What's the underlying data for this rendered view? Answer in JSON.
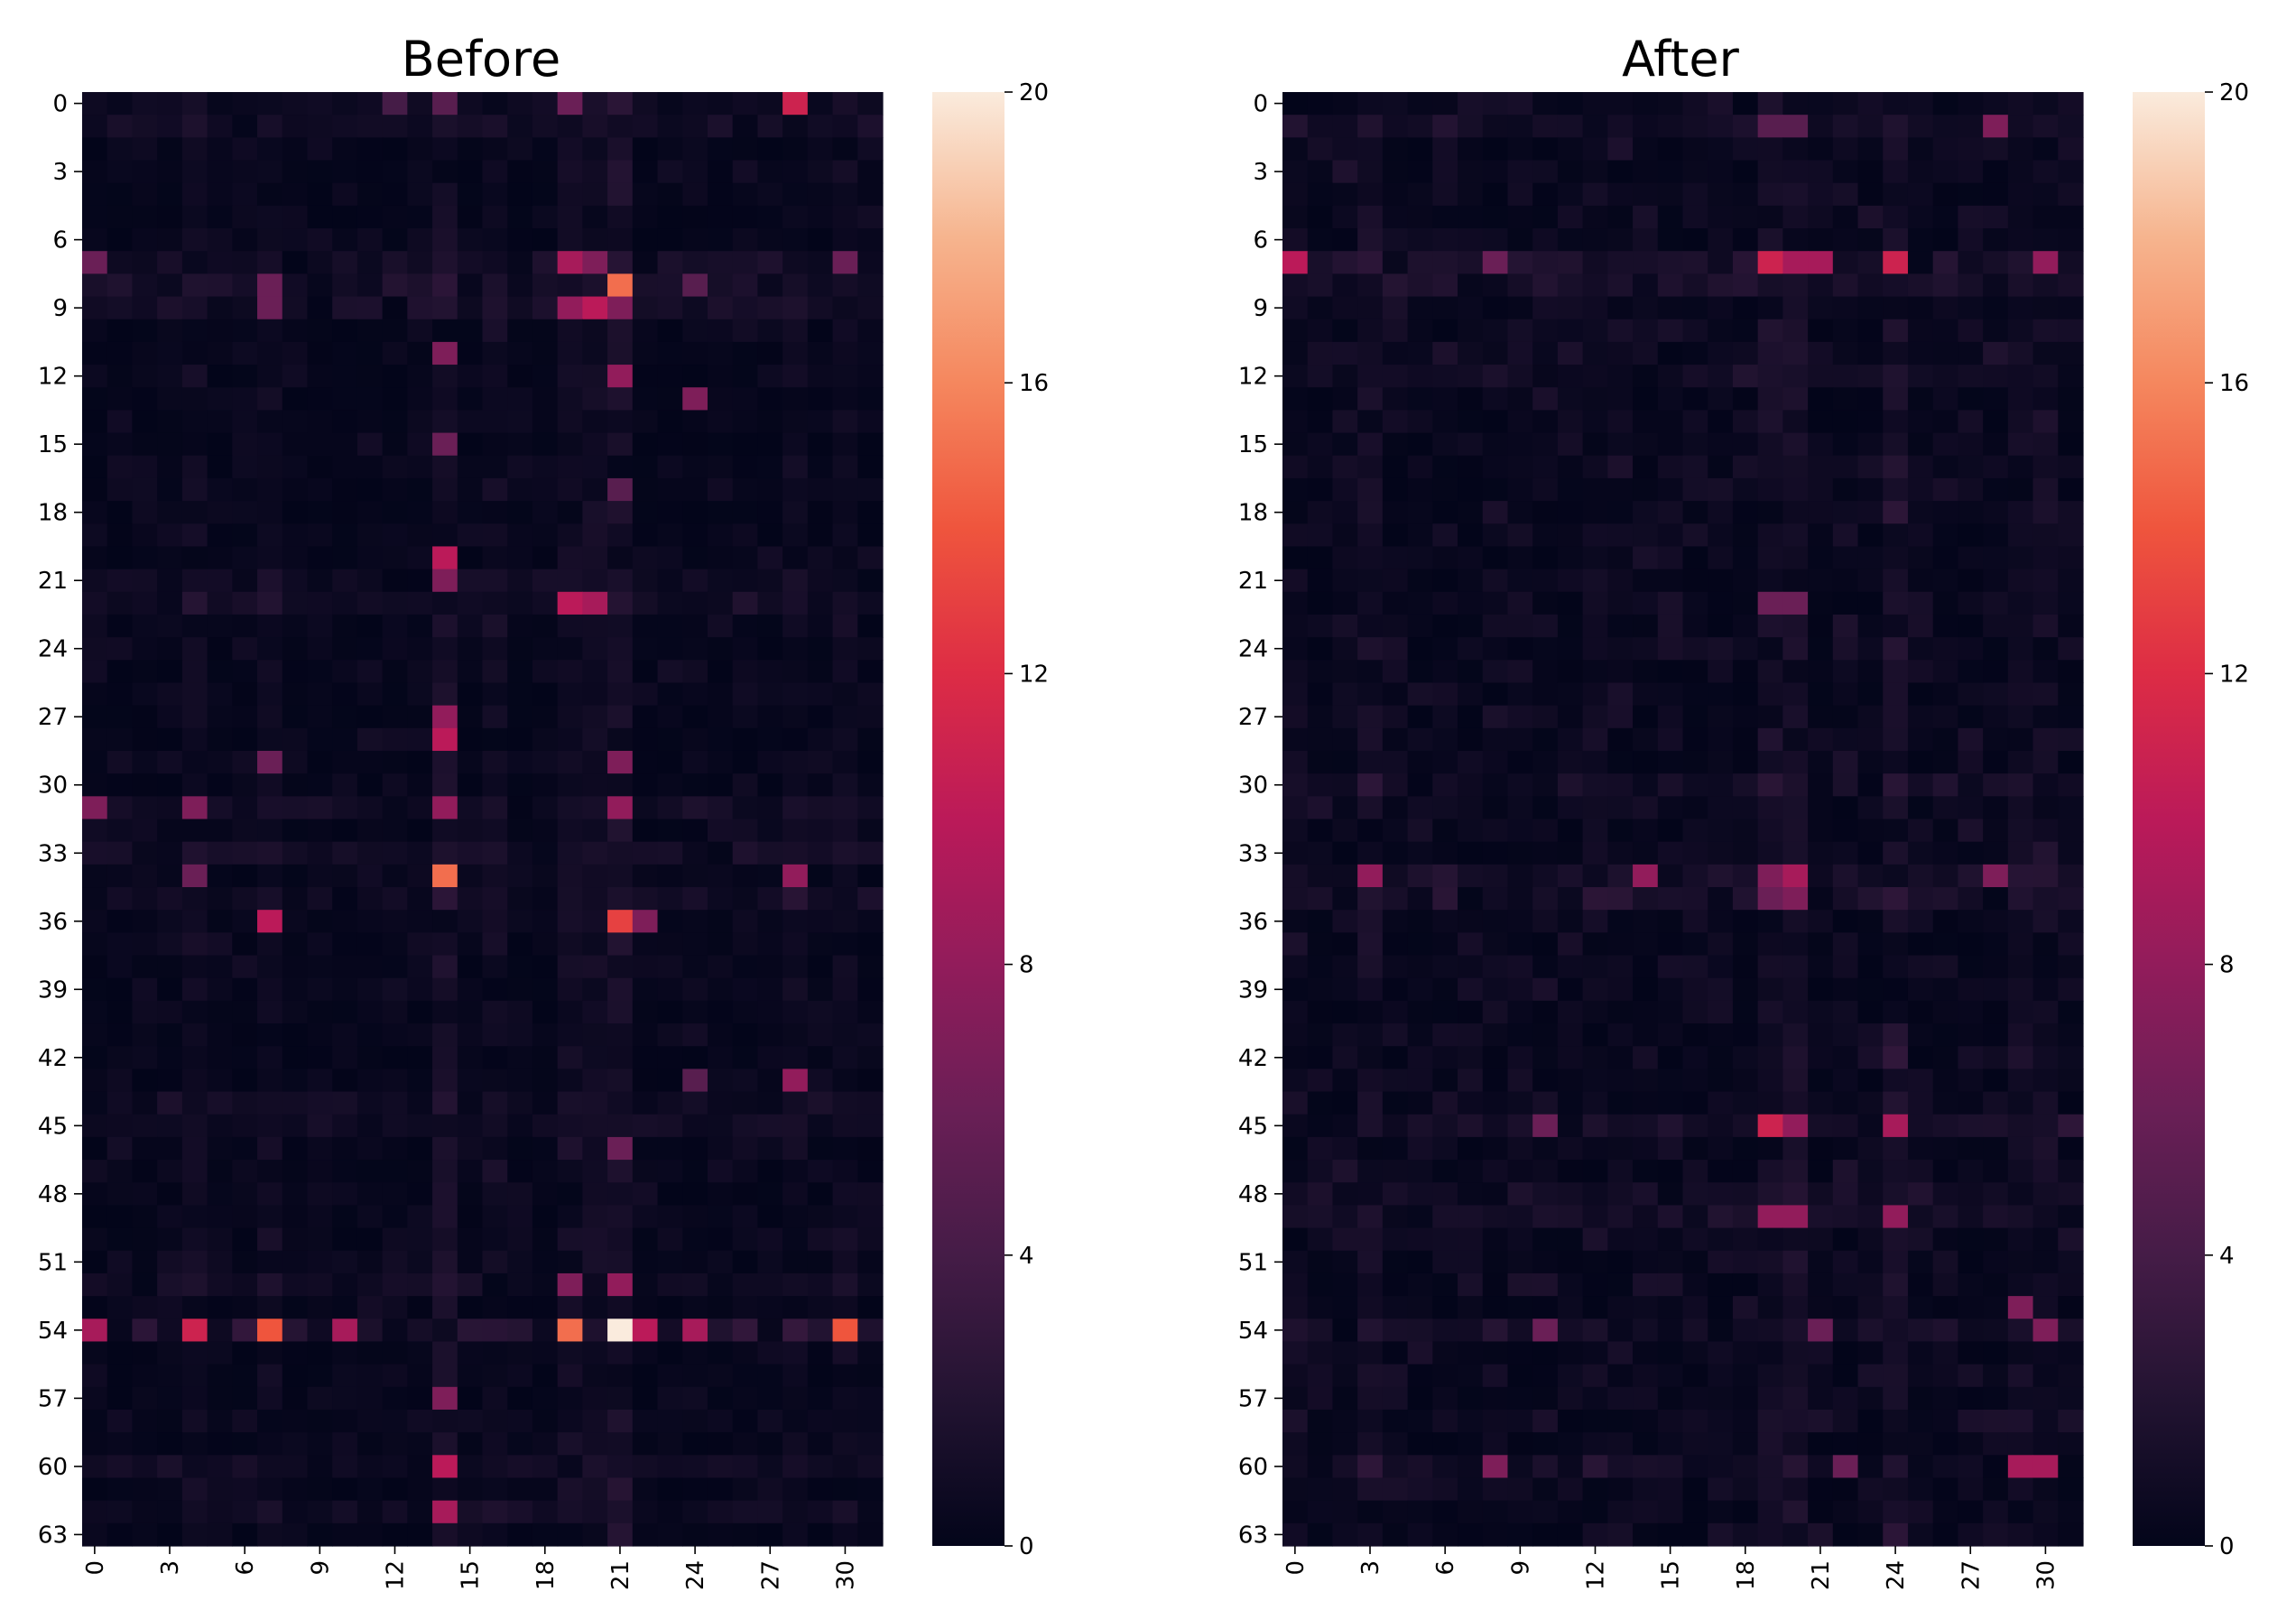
{
  "figure": "Before/After attention heatmaps",
  "chart_data": [
    {
      "type": "heatmap",
      "title": "Before",
      "rows": 64,
      "cols": 32,
      "xticks": [
        "0",
        "3",
        "6",
        "9",
        "12",
        "15",
        "18",
        "21",
        "24",
        "27",
        "30"
      ],
      "yticks": [
        "0",
        "3",
        "6",
        "9",
        "12",
        "15",
        "18",
        "21",
        "24",
        "27",
        "30",
        "33",
        "36",
        "39",
        "42",
        "45",
        "48",
        "51",
        "54",
        "57",
        "60",
        "63"
      ],
      "colorbar_ticks": [
        "0",
        "4",
        "8",
        "12",
        "16",
        "20"
      ],
      "vmin": 0,
      "vmax": 20,
      "seed": 7,
      "background_level": 0.8,
      "row_bias": {
        "0": 0.8,
        "1": 1.0,
        "7": 1.5,
        "8": 1.8,
        "9": 1.4,
        "21": 1.0,
        "22": 1.0,
        "31": 1.2,
        "33": 1.4,
        "35": 1.2,
        "44": 0.8,
        "45": 0.8,
        "52": 1.0,
        "54": 2.5,
        "60": 1.0,
        "62": 0.8
      },
      "col_bias": {
        "4": 0.6,
        "7": 0.8,
        "14": 1.6,
        "16": 0.6,
        "19": 1.0,
        "20": 1.0,
        "21": 1.5,
        "28": 0.6,
        "30": 0.6
      },
      "highlights": [
        {
          "r": 0,
          "c": 28,
          "v": 11
        },
        {
          "r": 0,
          "c": 19,
          "v": 6
        },
        {
          "r": 0,
          "c": 14,
          "v": 5
        },
        {
          "r": 0,
          "c": 12,
          "v": 4
        },
        {
          "r": 7,
          "c": 19,
          "v": 9
        },
        {
          "r": 7,
          "c": 20,
          "v": 7
        },
        {
          "r": 7,
          "c": 0,
          "v": 6
        },
        {
          "r": 7,
          "c": 30,
          "v": 6
        },
        {
          "r": 8,
          "c": 21,
          "v": 15
        },
        {
          "r": 8,
          "c": 7,
          "v": 6
        },
        {
          "r": 8,
          "c": 24,
          "v": 5
        },
        {
          "r": 9,
          "c": 20,
          "v": 10
        },
        {
          "r": 9,
          "c": 19,
          "v": 8
        },
        {
          "r": 9,
          "c": 21,
          "v": 7
        },
        {
          "r": 9,
          "c": 7,
          "v": 6
        },
        {
          "r": 11,
          "c": 14,
          "v": 7
        },
        {
          "r": 12,
          "c": 21,
          "v": 8
        },
        {
          "r": 13,
          "c": 24,
          "v": 7
        },
        {
          "r": 15,
          "c": 14,
          "v": 6
        },
        {
          "r": 17,
          "c": 21,
          "v": 5
        },
        {
          "r": 20,
          "c": 14,
          "v": 10
        },
        {
          "r": 21,
          "c": 14,
          "v": 7
        },
        {
          "r": 22,
          "c": 19,
          "v": 10
        },
        {
          "r": 22,
          "c": 20,
          "v": 9
        },
        {
          "r": 27,
          "c": 14,
          "v": 8
        },
        {
          "r": 28,
          "c": 14,
          "v": 10
        },
        {
          "r": 29,
          "c": 21,
          "v": 7
        },
        {
          "r": 29,
          "c": 7,
          "v": 6
        },
        {
          "r": 31,
          "c": 21,
          "v": 8
        },
        {
          "r": 31,
          "c": 14,
          "v": 8
        },
        {
          "r": 31,
          "c": 0,
          "v": 7
        },
        {
          "r": 31,
          "c": 4,
          "v": 7
        },
        {
          "r": 34,
          "c": 14,
          "v": 15
        },
        {
          "r": 34,
          "c": 28,
          "v": 8
        },
        {
          "r": 34,
          "c": 4,
          "v": 6
        },
        {
          "r": 36,
          "c": 7,
          "v": 10
        },
        {
          "r": 36,
          "c": 21,
          "v": 13
        },
        {
          "r": 36,
          "c": 22,
          "v": 7
        },
        {
          "r": 43,
          "c": 28,
          "v": 8
        },
        {
          "r": 43,
          "c": 24,
          "v": 5
        },
        {
          "r": 46,
          "c": 21,
          "v": 6
        },
        {
          "r": 52,
          "c": 21,
          "v": 8
        },
        {
          "r": 52,
          "c": 19,
          "v": 7
        },
        {
          "r": 54,
          "c": 21,
          "v": 20
        },
        {
          "r": 54,
          "c": 19,
          "v": 15
        },
        {
          "r": 54,
          "c": 30,
          "v": 14
        },
        {
          "r": 54,
          "c": 7,
          "v": 14
        },
        {
          "r": 54,
          "c": 4,
          "v": 11
        },
        {
          "r": 54,
          "c": 0,
          "v": 9
        },
        {
          "r": 54,
          "c": 10,
          "v": 9
        },
        {
          "r": 54,
          "c": 22,
          "v": 10
        },
        {
          "r": 54,
          "c": 24,
          "v": 9
        },
        {
          "r": 57,
          "c": 14,
          "v": 7
        },
        {
          "r": 60,
          "c": 14,
          "v": 10
        },
        {
          "r": 62,
          "c": 14,
          "v": 9
        }
      ]
    },
    {
      "type": "heatmap",
      "title": "After",
      "rows": 64,
      "cols": 32,
      "xticks": [
        "0",
        "3",
        "6",
        "9",
        "12",
        "15",
        "18",
        "21",
        "24",
        "27",
        "30"
      ],
      "yticks": [
        "0",
        "3",
        "6",
        "9",
        "12",
        "15",
        "18",
        "21",
        "24",
        "27",
        "30",
        "33",
        "36",
        "39",
        "42",
        "45",
        "48",
        "51",
        "54",
        "57",
        "60",
        "63"
      ],
      "colorbar_ticks": [
        "0",
        "4",
        "8",
        "12",
        "16",
        "20"
      ],
      "vmin": 0,
      "vmax": 20,
      "seed": 19,
      "background_level": 1.3,
      "row_bias": {
        "1": 1.0,
        "7": 1.6,
        "8": 1.0,
        "12": 1.0,
        "30": 1.0,
        "34": 1.6,
        "35": 1.4,
        "45": 1.4,
        "48": 1.0,
        "49": 1.2,
        "54": 1.2,
        "60": 1.2
      },
      "col_bias": {
        "3": 0.8,
        "19": 1.4,
        "20": 1.2,
        "24": 1.4,
        "29": 0.8,
        "30": 0.6
      },
      "highlights": [
        {
          "r": 1,
          "c": 28,
          "v": 7
        },
        {
          "r": 1,
          "c": 19,
          "v": 5
        },
        {
          "r": 1,
          "c": 20,
          "v": 5
        },
        {
          "r": 7,
          "c": 0,
          "v": 10
        },
        {
          "r": 7,
          "c": 19,
          "v": 11
        },
        {
          "r": 7,
          "c": 20,
          "v": 9
        },
        {
          "r": 7,
          "c": 21,
          "v": 9
        },
        {
          "r": 7,
          "c": 24,
          "v": 11
        },
        {
          "r": 7,
          "c": 30,
          "v": 8
        },
        {
          "r": 7,
          "c": 8,
          "v": 6
        },
        {
          "r": 22,
          "c": 19,
          "v": 6
        },
        {
          "r": 22,
          "c": 20,
          "v": 6
        },
        {
          "r": 34,
          "c": 3,
          "v": 8
        },
        {
          "r": 34,
          "c": 14,
          "v": 8
        },
        {
          "r": 34,
          "c": 20,
          "v": 9
        },
        {
          "r": 34,
          "c": 19,
          "v": 7
        },
        {
          "r": 34,
          "c": 28,
          "v": 7
        },
        {
          "r": 35,
          "c": 20,
          "v": 7
        },
        {
          "r": 35,
          "c": 19,
          "v": 6
        },
        {
          "r": 45,
          "c": 19,
          "v": 11
        },
        {
          "r": 45,
          "c": 20,
          "v": 8
        },
        {
          "r": 45,
          "c": 24,
          "v": 9
        },
        {
          "r": 45,
          "c": 10,
          "v": 6
        },
        {
          "r": 49,
          "c": 19,
          "v": 8
        },
        {
          "r": 49,
          "c": 20,
          "v": 8
        },
        {
          "r": 49,
          "c": 24,
          "v": 8
        },
        {
          "r": 54,
          "c": 30,
          "v": 7
        },
        {
          "r": 53,
          "c": 29,
          "v": 7
        },
        {
          "r": 54,
          "c": 10,
          "v": 6
        },
        {
          "r": 54,
          "c": 21,
          "v": 6
        },
        {
          "r": 60,
          "c": 29,
          "v": 9
        },
        {
          "r": 60,
          "c": 30,
          "v": 9
        },
        {
          "r": 60,
          "c": 8,
          "v": 7
        },
        {
          "r": 60,
          "c": 22,
          "v": 6
        }
      ]
    }
  ]
}
